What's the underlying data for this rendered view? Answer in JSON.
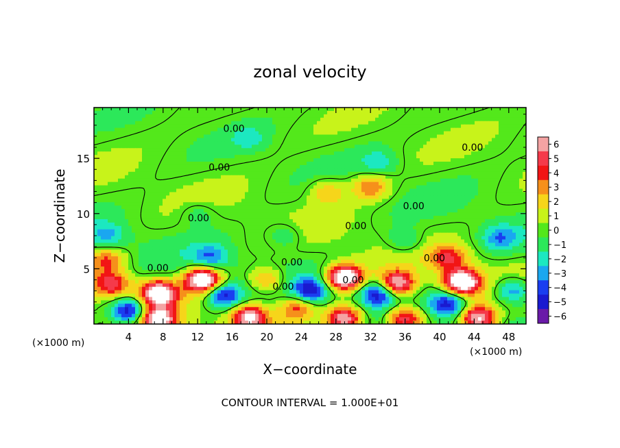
{
  "chart_data": {
    "type": "heatmap",
    "title": "zonal velocity",
    "xlabel": "X−coordinate",
    "ylabel": "Z−coordinate",
    "x_unit_left": "(×1000 m)",
    "x_unit_right": "(×1000 m)",
    "xlim": [
      0,
      50
    ],
    "ylim": [
      0,
      19.6
    ],
    "x_ticks": [
      4,
      8,
      12,
      16,
      20,
      24,
      28,
      32,
      36,
      40,
      44,
      48
    ],
    "y_ticks": [
      5,
      10,
      15
    ],
    "footer": "CONTOUR INTERVAL = 1.000E+01",
    "colorbar": {
      "levels": [
        6,
        5,
        4,
        3,
        2,
        1,
        0,
        -1,
        -2,
        -3,
        -4,
        -5,
        -6
      ],
      "labels": [
        "6",
        "5",
        "4",
        "3",
        "2",
        "1",
        "0",
        "−1",
        "−2",
        "−3",
        "−4",
        "−5",
        "−6"
      ],
      "colors": [
        "#f4a3a3",
        "#f53a4a",
        "#f21515",
        "#f6901b",
        "#f6d51a",
        "#c8f31a",
        "#53e81b",
        "#2ce85a",
        "#1ce8c0",
        "#1aa7f0",
        "#1a3ef0",
        "#1a1ad0",
        "#6a1aa8"
      ]
    },
    "contour_labels": [
      {
        "text": "0.00",
        "x": 16.2,
        "y": 17.7
      },
      {
        "text": "0.00",
        "x": 14.5,
        "y": 14.2
      },
      {
        "text": "0.00",
        "x": 12.1,
        "y": 9.6
      },
      {
        "text": "0.00",
        "x": 7.4,
        "y": 5.1
      },
      {
        "text": "0.00",
        "x": 22.9,
        "y": 5.6
      },
      {
        "text": "0.00",
        "x": 21.9,
        "y": 3.4
      },
      {
        "text": "0.00",
        "x": 30.0,
        "y": 4.0
      },
      {
        "text": "0.00",
        "x": 30.3,
        "y": 8.9
      },
      {
        "text": "0.00",
        "x": 37.0,
        "y": 10.7
      },
      {
        "text": "0.00",
        "x": 39.4,
        "y": 6.0
      },
      {
        "text": "0.00",
        "x": 43.8,
        "y": 16.0
      }
    ],
    "features": [
      {
        "type": "max",
        "x": 12.6,
        "y": 4.0,
        "amp": 9
      },
      {
        "type": "max",
        "x": 29.0,
        "y": 4.2,
        "amp": 9
      },
      {
        "type": "max",
        "x": 42.6,
        "y": 3.8,
        "amp": 9
      },
      {
        "type": "max",
        "x": 7.5,
        "y": 2.8,
        "amp": 8
      },
      {
        "type": "max",
        "x": 35.0,
        "y": 3.6,
        "amp": 7.5
      },
      {
        "type": "max",
        "x": 2.0,
        "y": 3.6,
        "amp": 5
      },
      {
        "type": "max",
        "x": 18.0,
        "y": 0.6,
        "amp": 7
      },
      {
        "type": "max",
        "x": 29.0,
        "y": 0.5,
        "amp": 7
      },
      {
        "type": "max",
        "x": 36.0,
        "y": 0.5,
        "amp": 6
      },
      {
        "type": "max",
        "x": 44.5,
        "y": 0.5,
        "amp": 7
      },
      {
        "type": "max",
        "x": 7.5,
        "y": 0.4,
        "amp": 7
      },
      {
        "type": "max",
        "x": 23.5,
        "y": 1.5,
        "amp": 4
      },
      {
        "type": "max",
        "x": 41.0,
        "y": 6.0,
        "amp": 4
      },
      {
        "type": "max",
        "x": 1.5,
        "y": 5.8,
        "amp": 3.5
      },
      {
        "type": "max",
        "x": 32.0,
        "y": 12.4,
        "amp": 3.5
      },
      {
        "type": "max",
        "x": 27.0,
        "y": 12.0,
        "amp": 2.5
      },
      {
        "type": "max",
        "x": 20.0,
        "y": 4.0,
        "amp": 3.5
      },
      {
        "type": "min",
        "x": 4.0,
        "y": 1.2,
        "amp": -6
      },
      {
        "type": "min",
        "x": 15.0,
        "y": 2.6,
        "amp": -5
      },
      {
        "type": "min",
        "x": 25.0,
        "y": 3.0,
        "amp": -5
      },
      {
        "type": "min",
        "x": 33.0,
        "y": 2.8,
        "amp": -5.5
      },
      {
        "type": "min",
        "x": 41.0,
        "y": 1.8,
        "amp": -5
      },
      {
        "type": "min",
        "x": 48.5,
        "y": 3.0,
        "amp": -4
      },
      {
        "type": "min",
        "x": 13.5,
        "y": 6.0,
        "amp": -3
      },
      {
        "type": "min",
        "x": 1.5,
        "y": 8.0,
        "amp": -2.5
      },
      {
        "type": "min",
        "x": 47.0,
        "y": 7.8,
        "amp": -3
      },
      {
        "type": "min",
        "x": 22.0,
        "y": 8.0,
        "amp": -2
      },
      {
        "type": "min",
        "x": 36.0,
        "y": 7.5,
        "amp": -2
      },
      {
        "type": "min",
        "x": 33.0,
        "y": 14.6,
        "amp": -2
      },
      {
        "type": "min",
        "x": 18.0,
        "y": 16.8,
        "amp": -1.5
      },
      {
        "type": "min",
        "x": 12.0,
        "y": 10.0,
        "amp": -1.5
      }
    ]
  }
}
